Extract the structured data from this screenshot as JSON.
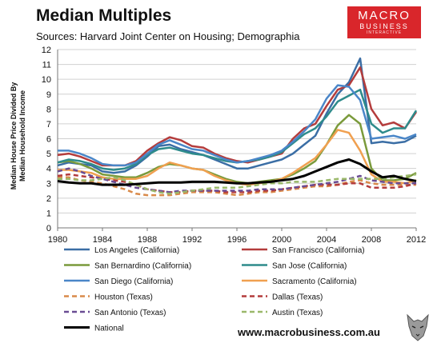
{
  "header": {
    "title": "Median Multiples",
    "subtitle": "Sources: Harvard Joint Center on Housing; Demographia"
  },
  "logo": {
    "line1": "MACRO",
    "line2": "BUSINESS",
    "line3": "INTERACTIVE"
  },
  "footer": {
    "url": "www.macrobusiness.com.au"
  },
  "chart_data": {
    "type": "line",
    "title": "Median Multiples",
    "ylabel": "Median House Price Divided By Median Household Income",
    "xlabel": "",
    "xlim": [
      1980,
      2012
    ],
    "ylim": [
      0,
      12
    ],
    "x_ticks": [
      "1980",
      "1984",
      "1988",
      "1992",
      "1996",
      "2000",
      "2004",
      "2008",
      "2012"
    ],
    "y_ticks": [
      "0",
      "1",
      "2",
      "3",
      "4",
      "5",
      "6",
      "7",
      "8",
      "9",
      "10",
      "11",
      "12"
    ],
    "grid": true,
    "legend_position": "bottom",
    "x": [
      1980,
      1981,
      1982,
      1983,
      1984,
      1985,
      1986,
      1987,
      1988,
      1989,
      1990,
      1991,
      1992,
      1993,
      1994,
      1995,
      1996,
      1997,
      1998,
      1999,
      2000,
      2001,
      2002,
      2003,
      2004,
      2005,
      2006,
      2007,
      2008,
      2009,
      2010,
      2011,
      2012
    ],
    "series": [
      {
        "name": "Los Angeles (California)",
        "color": "#3b6ea5",
        "dash": false,
        "values": [
          4.2,
          4.4,
          4.3,
          4.2,
          3.8,
          3.7,
          3.8,
          4.2,
          4.8,
          5.5,
          5.6,
          5.3,
          5.1,
          4.9,
          4.6,
          4.3,
          4.0,
          4.0,
          4.2,
          4.4,
          4.6,
          5.0,
          5.6,
          6.2,
          7.7,
          9.0,
          9.8,
          11.4,
          5.7,
          5.8,
          5.7,
          5.8,
          6.2
        ]
      },
      {
        "name": "San Francisco (California)",
        "color": "#b43c3c",
        "dash": false,
        "values": [
          4.9,
          5.0,
          4.8,
          4.5,
          4.2,
          4.2,
          4.2,
          4.5,
          5.2,
          5.7,
          6.1,
          5.9,
          5.5,
          5.4,
          5.0,
          4.7,
          4.5,
          4.4,
          4.6,
          4.8,
          5.0,
          6.0,
          6.7,
          7.0,
          8.2,
          9.3,
          9.6,
          10.8,
          8.0,
          6.9,
          7.1,
          6.7,
          7.8
        ]
      },
      {
        "name": "San Bernardino (California)",
        "color": "#7a9a3b",
        "dash": false,
        "values": [
          4.4,
          4.5,
          4.3,
          4.0,
          3.6,
          3.5,
          3.4,
          3.4,
          3.7,
          4.1,
          4.3,
          4.2,
          4.0,
          3.9,
          3.6,
          3.3,
          3.1,
          3.0,
          3.1,
          3.2,
          3.3,
          3.6,
          4.0,
          4.5,
          5.6,
          6.9,
          7.6,
          7.0,
          4.0,
          3.2,
          3.2,
          3.3,
          3.7
        ]
      },
      {
        "name": "San Jose (California)",
        "color": "#2e8b8b",
        "dash": false,
        "values": [
          4.4,
          4.6,
          4.5,
          4.3,
          4.0,
          3.9,
          4.0,
          4.3,
          4.9,
          5.3,
          5.4,
          5.2,
          5.0,
          4.9,
          4.7,
          4.5,
          4.4,
          4.5,
          4.6,
          4.8,
          5.1,
          5.7,
          6.3,
          6.7,
          7.5,
          8.5,
          8.9,
          9.3,
          7.0,
          6.4,
          6.7,
          6.7,
          7.9
        ]
      },
      {
        "name": "San Diego (California)",
        "color": "#4a86c8",
        "dash": false,
        "values": [
          5.2,
          5.2,
          5.0,
          4.7,
          4.3,
          4.2,
          4.2,
          4.4,
          5.0,
          5.6,
          5.9,
          5.6,
          5.3,
          5.2,
          4.9,
          4.6,
          4.4,
          4.5,
          4.7,
          4.9,
          5.2,
          5.8,
          6.5,
          7.3,
          8.7,
          9.6,
          9.5,
          8.6,
          6.0,
          6.1,
          6.2,
          6.0,
          6.3
        ]
      },
      {
        "name": "Sacramento (California)",
        "color": "#f0a050",
        "dash": false,
        "values": [
          3.9,
          3.9,
          3.8,
          3.7,
          3.4,
          3.3,
          3.3,
          3.3,
          3.5,
          4.0,
          4.4,
          4.2,
          4.0,
          3.9,
          3.5,
          3.2,
          3.0,
          2.9,
          3.0,
          3.1,
          3.3,
          3.7,
          4.2,
          4.7,
          5.6,
          6.6,
          6.4,
          5.2,
          3.6,
          3.1,
          3.1,
          3.0,
          3.2
        ]
      },
      {
        "name": "Houston (Texas)",
        "color": "#d98a4a",
        "dash": true,
        "values": [
          3.4,
          3.4,
          3.2,
          3.1,
          3.0,
          2.8,
          2.6,
          2.3,
          2.2,
          2.2,
          2.2,
          2.3,
          2.4,
          2.4,
          2.4,
          2.3,
          2.2,
          2.3,
          2.4,
          2.4,
          2.5,
          2.6,
          2.7,
          2.8,
          2.8,
          2.9,
          3.1,
          3.2,
          3.0,
          2.9,
          2.9,
          2.9,
          2.9
        ]
      },
      {
        "name": "Dallas (Texas)",
        "color": "#b43c3c",
        "dash": true,
        "values": [
          3.5,
          3.6,
          3.5,
          3.4,
          3.3,
          3.2,
          3.1,
          2.9,
          2.6,
          2.5,
          2.4,
          2.4,
          2.5,
          2.5,
          2.5,
          2.4,
          2.4,
          2.4,
          2.5,
          2.5,
          2.6,
          2.7,
          2.8,
          2.9,
          2.9,
          2.9,
          3.0,
          3.0,
          2.7,
          2.7,
          2.7,
          2.8,
          3.0
        ]
      },
      {
        "name": "San Antonio (Texas)",
        "color": "#6a4c93",
        "dash": true,
        "values": [
          3.8,
          4.0,
          3.8,
          3.5,
          3.3,
          3.1,
          2.9,
          2.7,
          2.6,
          2.5,
          2.4,
          2.5,
          2.5,
          2.5,
          2.5,
          2.5,
          2.5,
          2.5,
          2.6,
          2.6,
          2.6,
          2.7,
          2.8,
          2.9,
          3.0,
          3.1,
          3.3,
          3.5,
          3.2,
          3.1,
          3.0,
          3.0,
          3.0
        ]
      },
      {
        "name": "Austin (Texas)",
        "color": "#9ab86a",
        "dash": true,
        "values": [
          3.3,
          3.3,
          3.2,
          3.2,
          3.3,
          3.4,
          3.2,
          2.9,
          2.6,
          2.4,
          2.3,
          2.4,
          2.5,
          2.6,
          2.7,
          2.7,
          2.7,
          2.8,
          2.9,
          3.0,
          3.0,
          3.1,
          3.1,
          3.1,
          3.2,
          3.3,
          3.3,
          3.3,
          3.3,
          3.3,
          3.4,
          3.5,
          3.6
        ]
      },
      {
        "name": "National",
        "color": "#000000",
        "dash": false,
        "bold": true,
        "values": [
          3.15,
          3.05,
          3.0,
          3.0,
          2.9,
          2.9,
          2.9,
          2.95,
          3.0,
          3.05,
          3.05,
          3.05,
          3.1,
          3.1,
          3.1,
          3.05,
          3.0,
          3.0,
          3.05,
          3.1,
          3.2,
          3.3,
          3.5,
          3.8,
          4.1,
          4.4,
          4.6,
          4.3,
          3.8,
          3.4,
          3.5,
          3.3,
          3.15
        ]
      }
    ]
  }
}
